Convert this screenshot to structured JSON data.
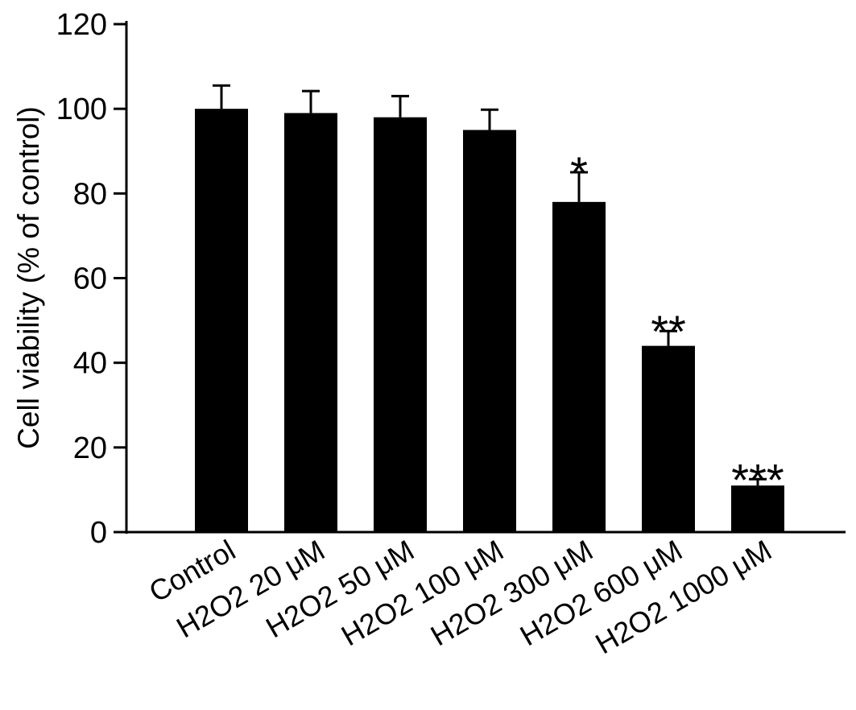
{
  "chart_data": {
    "type": "bar",
    "title": "",
    "xlabel": "",
    "ylabel": "Cell viability (% of control)",
    "categories": [
      "Control",
      "H2O2 20 μM",
      "H2O2 50 μM",
      "H2O2 100 μM",
      "H2O2 300 μM",
      "H2O2 600 μM",
      "H2O2 1000 μM"
    ],
    "values": [
      100,
      99,
      98,
      95,
      78,
      44,
      11
    ],
    "errors": [
      5.5,
      5.2,
      5,
      4.8,
      7,
      3.5,
      1.5
    ],
    "significance": [
      "",
      "",
      "",
      "",
      "*",
      "**",
      "***"
    ],
    "ylim": [
      0,
      120
    ],
    "yticks": [
      0,
      20,
      40,
      60,
      80,
      100,
      120
    ],
    "ytick_labels": [
      "0",
      "20",
      "40",
      "60",
      "80",
      "100",
      "120"
    ],
    "grid": false,
    "legend": false,
    "bar_color": "#000000",
    "axis_color": "#000000"
  }
}
